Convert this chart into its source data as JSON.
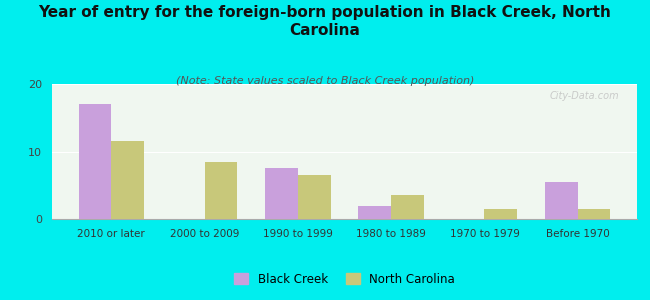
{
  "title": "Year of entry for the foreign-born population in Black Creek, North\nCarolina",
  "subtitle": "(Note: State values scaled to Black Creek population)",
  "categories": [
    "2010 or later",
    "2000 to 2009",
    "1990 to 1999",
    "1980 to 1989",
    "1970 to 1979",
    "Before 1970"
  ],
  "black_creek": [
    17,
    0,
    7.5,
    2,
    0,
    5.5
  ],
  "north_carolina": [
    11.5,
    8.5,
    6.5,
    3.5,
    1.5,
    1.5
  ],
  "black_creek_color": "#c9a0dc",
  "north_carolina_color": "#c8c87a",
  "background_color": "#00eeee",
  "ylim": [
    0,
    20
  ],
  "yticks": [
    0,
    10,
    20
  ],
  "bar_width": 0.35,
  "title_fontsize": 11,
  "subtitle_fontsize": 8,
  "legend_labels": [
    "Black Creek",
    "North Carolina"
  ],
  "watermark": "City-Data.com"
}
